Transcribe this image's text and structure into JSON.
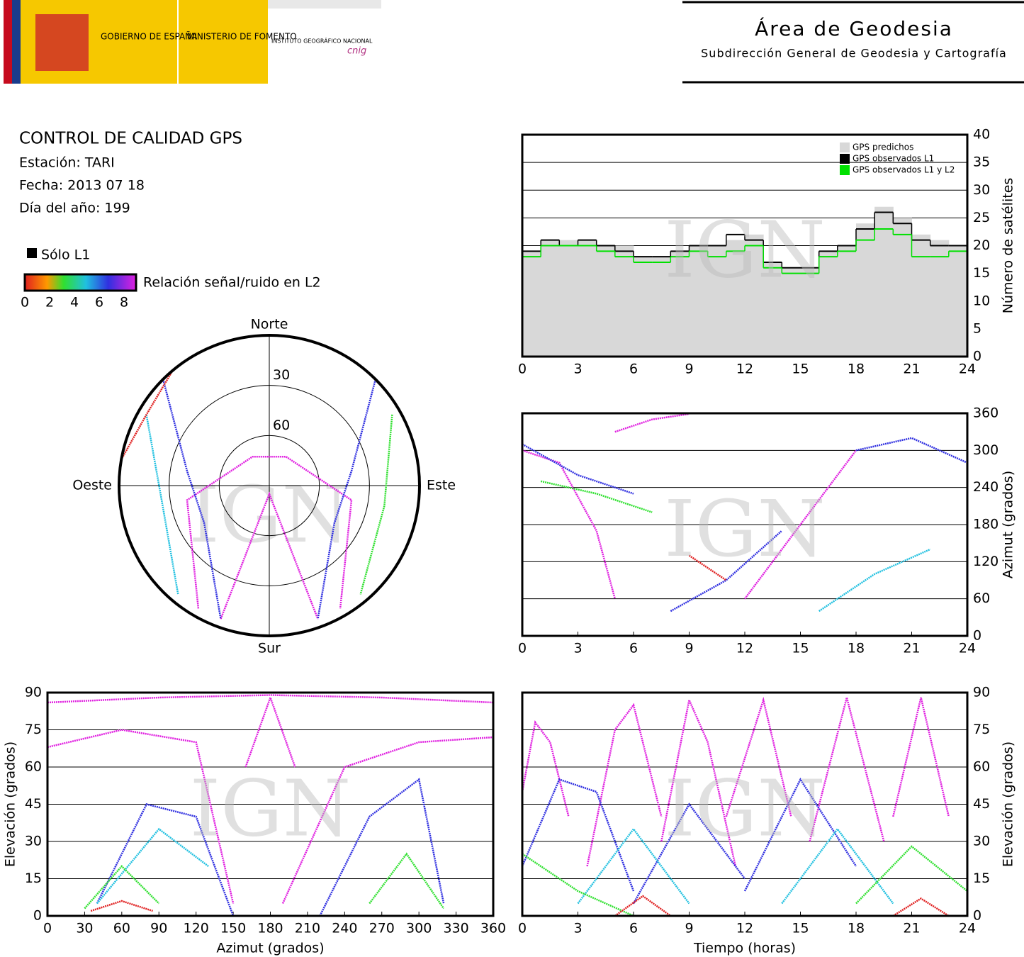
{
  "header": {
    "gov": "GOBIERNO DE ESPAÑA",
    "ministry": "MINISTERIO DE FOMENTO",
    "institute": "INSTITUTO GEOGRÁFICO NACIONAL",
    "cnig": "cnig",
    "title": "Área de Geodesia",
    "subtitle": "Subdirección General de Geodesia y Cartografía"
  },
  "info": {
    "title": "CONTROL DE CALIDAD GPS",
    "station": "Estación: TARI",
    "date": "Fecha: 2013 07 18",
    "doy": "Día del año: 199"
  },
  "legend": {
    "l1_only": "Sólo L1",
    "colorbar_label": "Relación señal/ruido en L2",
    "colorbar_ticks": [
      0,
      2,
      4,
      6,
      8
    ],
    "l1_color": "#000000"
  },
  "watermark": "IGN",
  "chart_data": [
    {
      "type": "polar",
      "directions": [
        "Norte",
        "Sur",
        "Este",
        "Oeste"
      ],
      "rticks": [
        30,
        60
      ],
      "series": [
        {
          "color": "#e020e0",
          "x": [
            210,
            260,
            330,
            30,
            100,
            150
          ],
          "values": [
            5,
            40,
            70,
            70,
            40,
            5
          ]
        },
        {
          "color": "#e020e0",
          "x": [
            200,
            180,
            160
          ],
          "values": [
            5,
            85,
            5
          ]
        },
        {
          "color": "#3030e0",
          "x": [
            315,
            280,
            240,
            200
          ],
          "values": [
            0,
            40,
            45,
            5
          ]
        },
        {
          "color": "#3030e0",
          "x": [
            45,
            80,
            120,
            160
          ],
          "values": [
            0,
            40,
            45,
            5
          ]
        },
        {
          "color": "#20c0e0",
          "x": [
            300,
            260,
            220
          ],
          "values": [
            5,
            25,
            5
          ]
        },
        {
          "color": "#30e030",
          "x": [
            60,
            100,
            140
          ],
          "values": [
            5,
            20,
            5
          ]
        },
        {
          "color": "#e02020",
          "x": [
            320,
            300,
            280
          ],
          "values": [
            0,
            5,
            0
          ]
        }
      ]
    },
    {
      "type": "step",
      "ylabel": "Número de satélites",
      "xlim": [
        0,
        24
      ],
      "ylim": [
        0,
        40
      ],
      "xticks": [
        0,
        3,
        6,
        9,
        12,
        15,
        18,
        21,
        24
      ],
      "yticks": [
        0,
        5,
        10,
        15,
        20,
        25,
        30,
        35,
        40
      ],
      "grid": true,
      "legend": "top-right",
      "x": [
        0,
        1,
        2,
        3,
        4,
        5,
        6,
        7,
        8,
        9,
        10,
        11,
        12,
        13,
        14,
        15,
        16,
        17,
        18,
        19,
        20,
        21,
        22,
        23
      ],
      "series": [
        {
          "name": "GPS predichos",
          "color": "#d8d8d8",
          "area": true,
          "values": [
            19,
            21,
            21,
            21,
            20,
            20,
            18,
            18,
            19,
            20,
            20,
            21,
            22,
            17,
            16,
            16,
            19,
            20,
            24,
            27,
            25,
            22,
            21,
            20
          ]
        },
        {
          "name": "GPS observados L1",
          "color": "#000000",
          "area": false,
          "values": [
            19,
            21,
            20,
            21,
            20,
            19,
            18,
            18,
            19,
            20,
            20,
            22,
            21,
            17,
            16,
            16,
            19,
            20,
            23,
            26,
            24,
            21,
            20,
            20
          ]
        },
        {
          "name": "GPS observados L1 y L2",
          "color": "#00e000",
          "area": false,
          "values": [
            18,
            20,
            20,
            20,
            19,
            18,
            17,
            17,
            18,
            19,
            18,
            19,
            20,
            16,
            15,
            15,
            18,
            19,
            21,
            23,
            22,
            18,
            18,
            19
          ]
        }
      ]
    },
    {
      "type": "scatter",
      "ylabel": "Azimut (grados)",
      "xlim": [
        0,
        24
      ],
      "ylim": [
        0,
        360
      ],
      "xticks": [
        0,
        3,
        6,
        9,
        12,
        15,
        18,
        21,
        24
      ],
      "yticks": [
        0,
        60,
        120,
        180,
        240,
        300,
        360
      ],
      "grid": true,
      "series": [
        {
          "color": "#e020e0",
          "x": [
            0,
            2,
            4,
            5
          ],
          "values": [
            300,
            280,
            170,
            60
          ]
        },
        {
          "color": "#e020e0",
          "x": [
            5,
            7,
            9
          ],
          "values": [
            330,
            350,
            359
          ]
        },
        {
          "color": "#3030e0",
          "x": [
            0,
            3,
            6
          ],
          "values": [
            310,
            260,
            230
          ]
        },
        {
          "color": "#3030e0",
          "x": [
            8,
            11,
            14
          ],
          "values": [
            40,
            90,
            170
          ]
        },
        {
          "color": "#20c0e0",
          "x": [
            16,
            19,
            22
          ],
          "values": [
            40,
            100,
            140
          ]
        },
        {
          "color": "#30e030",
          "x": [
            1,
            4,
            7
          ],
          "values": [
            250,
            230,
            200
          ]
        },
        {
          "color": "#e02020",
          "x": [
            9,
            11
          ],
          "values": [
            130,
            90
          ]
        },
        {
          "color": "#e020e0",
          "x": [
            12,
            15,
            18
          ],
          "values": [
            60,
            180,
            300
          ]
        },
        {
          "color": "#3030e0",
          "x": [
            18,
            21,
            24
          ],
          "values": [
            300,
            320,
            280
          ]
        }
      ]
    },
    {
      "type": "scatter",
      "xlabel": "Azimut (grados)",
      "ylabel": "Elevación (grados)",
      "xlim": [
        0,
        360
      ],
      "ylim": [
        0,
        90
      ],
      "xticks": [
        0,
        30,
        60,
        90,
        120,
        150,
        180,
        210,
        240,
        270,
        300,
        330,
        360
      ],
      "yticks": [
        0,
        15,
        30,
        45,
        60,
        75,
        90
      ],
      "grid": true,
      "series": [
        {
          "color": "#e020e0",
          "x": [
            0,
            60,
            120,
            150
          ],
          "values": [
            68,
            75,
            70,
            5
          ]
        },
        {
          "color": "#e020e0",
          "x": [
            190,
            240,
            300,
            360
          ],
          "values": [
            5,
            60,
            70,
            72
          ]
        },
        {
          "color": "#e020e0",
          "x": [
            0,
            90,
            180,
            270,
            360
          ],
          "values": [
            86,
            88,
            89,
            88,
            86
          ]
        },
        {
          "color": "#e020e0",
          "x": [
            160,
            180,
            200
          ],
          "values": [
            60,
            88,
            60
          ]
        },
        {
          "color": "#3030e0",
          "x": [
            40,
            80,
            120,
            150
          ],
          "values": [
            5,
            45,
            40,
            0
          ]
        },
        {
          "color": "#3030e0",
          "x": [
            220,
            260,
            300,
            320
          ],
          "values": [
            0,
            40,
            55,
            5
          ]
        },
        {
          "color": "#20c0e0",
          "x": [
            40,
            90,
            130
          ],
          "values": [
            5,
            35,
            20
          ]
        },
        {
          "color": "#30e030",
          "x": [
            30,
            60,
            90
          ],
          "values": [
            3,
            20,
            5
          ]
        },
        {
          "color": "#30e030",
          "x": [
            260,
            290,
            320
          ],
          "values": [
            5,
            25,
            3
          ]
        },
        {
          "color": "#e02020",
          "x": [
            35,
            60,
            85
          ],
          "values": [
            2,
            6,
            2
          ]
        }
      ]
    },
    {
      "type": "scatter",
      "xlabel": "Tiempo (horas)",
      "ylabel": "Elevación (grados)",
      "xlim": [
        0,
        24
      ],
      "ylim": [
        0,
        90
      ],
      "xticks": [
        0,
        3,
        6,
        9,
        12,
        15,
        18,
        21,
        24
      ],
      "yticks": [
        0,
        15,
        30,
        45,
        60,
        75,
        90
      ],
      "grid": true,
      "series": [
        {
          "color": "#e020e0",
          "x": [
            0,
            0.7,
            1.5,
            2.5
          ],
          "values": [
            50,
            78,
            70,
            40
          ]
        },
        {
          "color": "#e020e0",
          "x": [
            3.5,
            5,
            6,
            7.5
          ],
          "values": [
            20,
            75,
            85,
            40
          ]
        },
        {
          "color": "#e020e0",
          "x": [
            7.5,
            9,
            10,
            11.5
          ],
          "values": [
            30,
            87,
            70,
            20
          ]
        },
        {
          "color": "#e020e0",
          "x": [
            11,
            13,
            14.5
          ],
          "values": [
            40,
            87,
            40
          ]
        },
        {
          "color": "#e020e0",
          "x": [
            15.5,
            17.5,
            19.5
          ],
          "values": [
            30,
            88,
            30
          ]
        },
        {
          "color": "#e020e0",
          "x": [
            20,
            21.5,
            23
          ],
          "values": [
            40,
            88,
            40
          ]
        },
        {
          "color": "#3030e0",
          "x": [
            0,
            2,
            4,
            6
          ],
          "values": [
            20,
            55,
            50,
            10
          ]
        },
        {
          "color": "#3030e0",
          "x": [
            6,
            9,
            12
          ],
          "values": [
            5,
            45,
            15
          ]
        },
        {
          "color": "#3030e0",
          "x": [
            12,
            15,
            18
          ],
          "values": [
            10,
            55,
            20
          ]
        },
        {
          "color": "#20c0e0",
          "x": [
            3,
            6,
            9
          ],
          "values": [
            5,
            35,
            5
          ]
        },
        {
          "color": "#20c0e0",
          "x": [
            14,
            17,
            20
          ],
          "values": [
            5,
            35,
            5
          ]
        },
        {
          "color": "#30e030",
          "x": [
            0,
            3,
            6
          ],
          "values": [
            25,
            10,
            0
          ]
        },
        {
          "color": "#30e030",
          "x": [
            18,
            21,
            24
          ],
          "values": [
            5,
            28,
            10
          ]
        },
        {
          "color": "#e02020",
          "x": [
            5,
            6.5,
            8
          ],
          "values": [
            0,
            8,
            0
          ]
        },
        {
          "color": "#e02020",
          "x": [
            20,
            21.5,
            23
          ],
          "values": [
            0,
            7,
            0
          ]
        }
      ]
    }
  ]
}
